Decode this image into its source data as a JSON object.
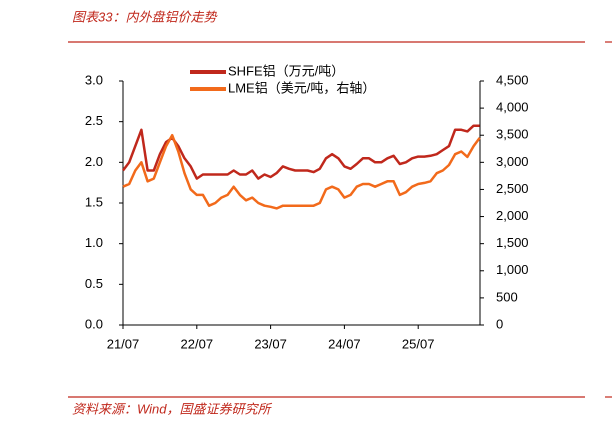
{
  "chart_data": {
    "type": "line",
    "title": "图表33：内外盘铝价走势",
    "source": "资料来源：Wind，国盛证券研究所",
    "categories": [
      "21/07",
      null,
      null,
      null,
      null,
      null,
      null,
      null,
      null,
      null,
      null,
      null,
      "22/07",
      null,
      null,
      null,
      null,
      null,
      null,
      null,
      null,
      null,
      null,
      null,
      "23/07",
      null,
      null,
      null,
      null,
      null,
      null,
      null,
      null,
      null,
      null,
      null,
      "24/07",
      null,
      null,
      null,
      null,
      null,
      null,
      null,
      null,
      null,
      null,
      null,
      "25/07",
      null,
      null,
      null,
      null,
      null,
      null,
      null,
      null,
      null,
      null
    ],
    "series": [
      {
        "name": "SHFE铝（万元/吨）",
        "color": "#C0281C",
        "axis": "y",
        "values": [
          1.9,
          2.0,
          2.2,
          2.4,
          1.9,
          1.9,
          2.1,
          2.25,
          2.3,
          2.2,
          2.05,
          1.95,
          1.8,
          1.85,
          1.85,
          1.85,
          1.85,
          1.85,
          1.9,
          1.85,
          1.85,
          1.9,
          1.8,
          1.85,
          1.82,
          1.87,
          1.95,
          1.92,
          1.9,
          1.9,
          1.9,
          1.88,
          1.92,
          2.05,
          2.1,
          2.05,
          1.95,
          1.92,
          1.98,
          2.05,
          2.05,
          2.0,
          2.0,
          2.05,
          2.08,
          1.98,
          2.0,
          2.05,
          2.07,
          2.07,
          2.08,
          2.1,
          2.15,
          2.2,
          2.4,
          2.4,
          2.38,
          2.45,
          2.45
        ]
      },
      {
        "name": "LME铝（美元/吨，右轴）",
        "color": "#F26A1B",
        "axis": "y2",
        "values": [
          2550,
          2600,
          2850,
          3000,
          2650,
          2700,
          3000,
          3300,
          3500,
          3200,
          2800,
          2500,
          2400,
          2400,
          2200,
          2250,
          2350,
          2400,
          2550,
          2400,
          2300,
          2350,
          2250,
          2200,
          2180,
          2150,
          2200,
          2200,
          2200,
          2200,
          2200,
          2200,
          2250,
          2500,
          2550,
          2500,
          2350,
          2400,
          2550,
          2600,
          2600,
          2550,
          2600,
          2650,
          2650,
          2400,
          2450,
          2550,
          2600,
          2620,
          2650,
          2800,
          2850,
          2950,
          3150,
          3200,
          3100,
          3300,
          3450
        ]
      }
    ],
    "ylim": [
      0,
      3
    ],
    "yticks": [
      {
        "value": 0,
        "label": "0.0"
      },
      0.5,
      {
        "value": 1,
        "label": "1.0"
      },
      1.5,
      {
        "value": 2,
        "label": "2.0"
      },
      2.5,
      {
        "value": 3,
        "label": "3.0"
      }
    ],
    "y2lim": [
      0,
      4500
    ],
    "y2ticks": [
      0,
      500,
      {
        "value": 1000,
        "label": "1,000"
      },
      {
        "value": 1500,
        "label": "1,500"
      },
      {
        "value": 2000,
        "label": "2,000"
      },
      {
        "value": 2500,
        "label": "2,500"
      },
      {
        "value": 3000,
        "label": "3,000"
      },
      {
        "value": 3500,
        "label": "3,500"
      },
      {
        "value": 4000,
        "label": "4,000"
      },
      {
        "value": 4500,
        "label": "4,500"
      }
    ],
    "grid": false
  }
}
